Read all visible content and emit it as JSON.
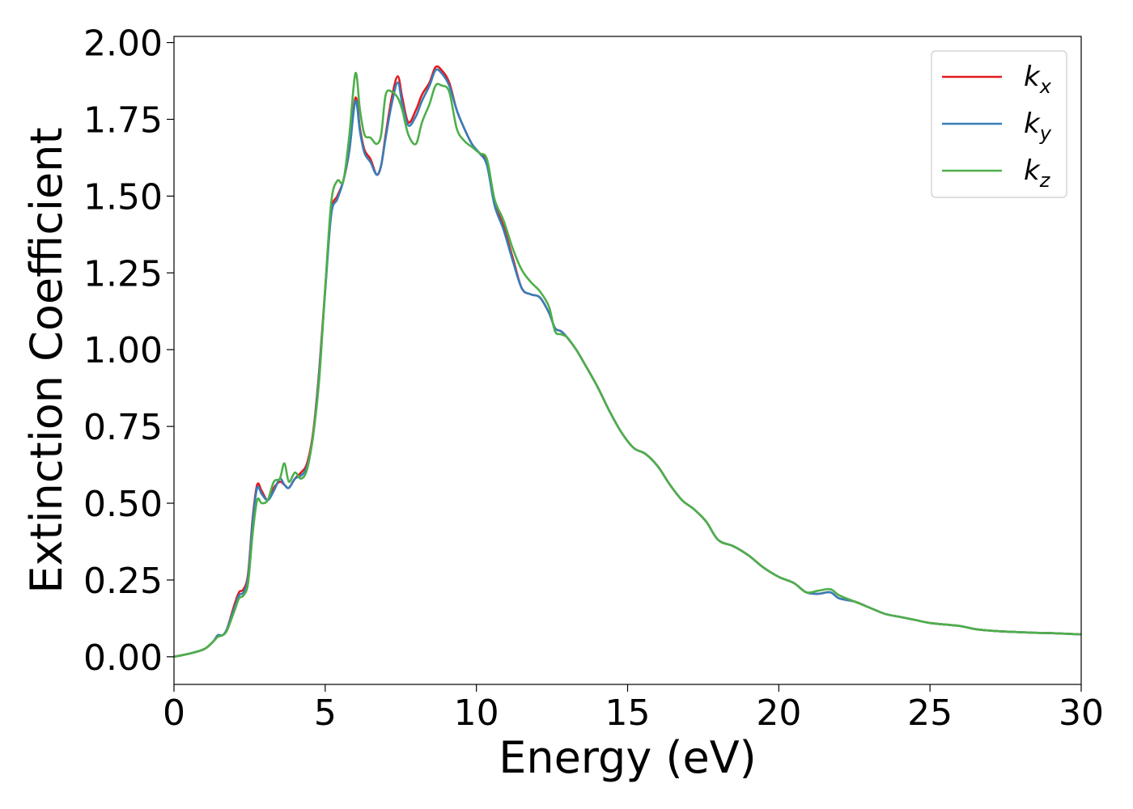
{
  "chart_data": {
    "type": "line",
    "xlabel": "Energy (eV)",
    "ylabel": "Extinction Coefficient",
    "xlim": [
      0,
      30
    ],
    "ylim": [
      -0.09,
      2.02
    ],
    "xticks": [
      0,
      5,
      10,
      15,
      20,
      25,
      30
    ],
    "yticks": [
      0.0,
      0.25,
      0.5,
      0.75,
      1.0,
      1.25,
      1.5,
      1.75,
      2.0
    ],
    "ytick_labels": [
      "0.00",
      "0.25",
      "0.50",
      "0.75",
      "1.00",
      "1.25",
      "1.50",
      "1.75",
      "2.00"
    ],
    "grid": false,
    "legend_position": "top-right",
    "series": [
      {
        "name": "k_x",
        "label_main": "k",
        "label_sub": "x",
        "color": "#e41a1c",
        "x": [
          0,
          0.5,
          1,
          1.3,
          1.45,
          1.6,
          1.75,
          2,
          2.15,
          2.3,
          2.45,
          2.6,
          2.75,
          2.9,
          3.1,
          3.3,
          3.5,
          3.65,
          3.8,
          4,
          4.2,
          4.4,
          4.6,
          4.8,
          5,
          5.2,
          5.4,
          5.6,
          5.8,
          6,
          6.15,
          6.3,
          6.5,
          6.7,
          6.85,
          7,
          7.2,
          7.4,
          7.55,
          7.75,
          8,
          8.2,
          8.45,
          8.65,
          8.85,
          9.1,
          9.35,
          9.6,
          9.85,
          10.1,
          10.35,
          10.6,
          10.9,
          11.2,
          11.5,
          11.8,
          12.1,
          12.4,
          12.6,
          12.8,
          13,
          13.3,
          13.6,
          14,
          14.4,
          14.8,
          15.2,
          15.6,
          16,
          16.4,
          16.8,
          17.2,
          17.6,
          18,
          18.5,
          19,
          19.5,
          20,
          20.5,
          20.9,
          21.3,
          21.7,
          22,
          22.5,
          23,
          23.5,
          24,
          24.5,
          25,
          25.5,
          26,
          26.5,
          27,
          27.5,
          28,
          28.5,
          29,
          29.5,
          30
        ],
        "values": [
          0,
          0.01,
          0.025,
          0.05,
          0.07,
          0.07,
          0.09,
          0.17,
          0.21,
          0.22,
          0.27,
          0.45,
          0.56,
          0.54,
          0.51,
          0.55,
          0.57,
          0.56,
          0.55,
          0.58,
          0.6,
          0.63,
          0.73,
          0.93,
          1.2,
          1.45,
          1.5,
          1.55,
          1.65,
          1.82,
          1.72,
          1.65,
          1.62,
          1.57,
          1.6,
          1.7,
          1.82,
          1.89,
          1.82,
          1.74,
          1.78,
          1.83,
          1.87,
          1.92,
          1.91,
          1.87,
          1.78,
          1.72,
          1.67,
          1.64,
          1.61,
          1.48,
          1.4,
          1.3,
          1.2,
          1.18,
          1.17,
          1.12,
          1.07,
          1.06,
          1.04,
          1.0,
          0.95,
          0.88,
          0.8,
          0.73,
          0.68,
          0.66,
          0.62,
          0.56,
          0.51,
          0.48,
          0.44,
          0.38,
          0.36,
          0.33,
          0.29,
          0.26,
          0.24,
          0.21,
          0.205,
          0.21,
          0.19,
          0.18,
          0.16,
          0.14,
          0.13,
          0.12,
          0.11,
          0.105,
          0.1,
          0.09,
          0.085,
          0.082,
          0.08,
          0.078,
          0.077,
          0.075,
          0.073
        ]
      },
      {
        "name": "k_y",
        "label_main": "k",
        "label_sub": "y",
        "color": "#377eb8",
        "x": [
          0,
          0.5,
          1,
          1.3,
          1.45,
          1.6,
          1.75,
          2,
          2.15,
          2.3,
          2.45,
          2.6,
          2.75,
          2.9,
          3.1,
          3.3,
          3.5,
          3.65,
          3.8,
          4,
          4.2,
          4.4,
          4.6,
          4.8,
          5,
          5.2,
          5.4,
          5.6,
          5.8,
          6,
          6.15,
          6.3,
          6.5,
          6.7,
          6.85,
          7,
          7.2,
          7.4,
          7.55,
          7.75,
          8,
          8.2,
          8.45,
          8.65,
          8.85,
          9.1,
          9.35,
          9.6,
          9.85,
          10.1,
          10.35,
          10.6,
          10.9,
          11.2,
          11.5,
          11.8,
          12.1,
          12.4,
          12.6,
          12.8,
          13,
          13.3,
          13.6,
          14,
          14.4,
          14.8,
          15.2,
          15.6,
          16,
          16.4,
          16.8,
          17.2,
          17.6,
          18,
          18.5,
          19,
          19.5,
          20,
          20.5,
          20.9,
          21.3,
          21.7,
          22,
          22.5,
          23,
          23.5,
          24,
          24.5,
          25,
          25.5,
          26,
          26.5,
          27,
          27.5,
          28,
          28.5,
          29,
          29.5,
          30
        ],
        "values": [
          0,
          0.01,
          0.025,
          0.05,
          0.07,
          0.07,
          0.09,
          0.16,
          0.2,
          0.21,
          0.26,
          0.44,
          0.55,
          0.53,
          0.51,
          0.54,
          0.58,
          0.56,
          0.55,
          0.58,
          0.59,
          0.62,
          0.72,
          0.92,
          1.19,
          1.44,
          1.49,
          1.55,
          1.65,
          1.81,
          1.71,
          1.64,
          1.61,
          1.57,
          1.6,
          1.69,
          1.8,
          1.87,
          1.8,
          1.73,
          1.76,
          1.81,
          1.86,
          1.91,
          1.9,
          1.86,
          1.78,
          1.72,
          1.67,
          1.64,
          1.6,
          1.47,
          1.39,
          1.29,
          1.2,
          1.18,
          1.17,
          1.12,
          1.07,
          1.06,
          1.04,
          1.0,
          0.95,
          0.88,
          0.8,
          0.73,
          0.68,
          0.66,
          0.62,
          0.56,
          0.51,
          0.48,
          0.44,
          0.38,
          0.36,
          0.33,
          0.29,
          0.26,
          0.24,
          0.21,
          0.205,
          0.21,
          0.19,
          0.18,
          0.16,
          0.14,
          0.13,
          0.12,
          0.11,
          0.105,
          0.1,
          0.09,
          0.085,
          0.082,
          0.08,
          0.078,
          0.077,
          0.075,
          0.073
        ]
      },
      {
        "name": "k_z",
        "label_main": "k",
        "label_sub": "z",
        "color": "#4daf4a",
        "x": [
          0,
          0.5,
          1,
          1.3,
          1.45,
          1.6,
          1.75,
          2,
          2.15,
          2.3,
          2.45,
          2.6,
          2.75,
          2.9,
          3.1,
          3.3,
          3.5,
          3.65,
          3.8,
          4,
          4.2,
          4.4,
          4.6,
          4.8,
          5,
          5.2,
          5.4,
          5.6,
          5.8,
          6,
          6.15,
          6.3,
          6.5,
          6.7,
          6.85,
          7,
          7.2,
          7.4,
          7.55,
          7.75,
          8,
          8.2,
          8.45,
          8.65,
          8.85,
          9.1,
          9.35,
          9.6,
          9.85,
          10.1,
          10.35,
          10.6,
          10.9,
          11.2,
          11.5,
          11.8,
          12.1,
          12.4,
          12.6,
          12.8,
          13,
          13.3,
          13.6,
          14,
          14.4,
          14.8,
          15.2,
          15.6,
          16,
          16.4,
          16.8,
          17.2,
          17.6,
          18,
          18.5,
          19,
          19.5,
          20,
          20.5,
          20.9,
          21.3,
          21.7,
          22,
          22.5,
          23,
          23.5,
          24,
          24.5,
          25,
          25.5,
          26,
          26.5,
          27,
          27.5,
          28,
          28.5,
          29,
          29.5,
          30
        ],
        "values": [
          0,
          0.01,
          0.025,
          0.05,
          0.065,
          0.07,
          0.085,
          0.15,
          0.19,
          0.2,
          0.24,
          0.4,
          0.51,
          0.5,
          0.51,
          0.57,
          0.58,
          0.63,
          0.57,
          0.6,
          0.58,
          0.61,
          0.72,
          0.9,
          1.2,
          1.48,
          1.55,
          1.55,
          1.7,
          1.9,
          1.78,
          1.7,
          1.69,
          1.67,
          1.7,
          1.83,
          1.84,
          1.82,
          1.78,
          1.7,
          1.67,
          1.74,
          1.8,
          1.86,
          1.86,
          1.84,
          1.72,
          1.68,
          1.66,
          1.64,
          1.62,
          1.49,
          1.42,
          1.33,
          1.26,
          1.22,
          1.19,
          1.14,
          1.06,
          1.05,
          1.04,
          1.0,
          0.95,
          0.88,
          0.8,
          0.73,
          0.68,
          0.66,
          0.62,
          0.56,
          0.51,
          0.48,
          0.44,
          0.38,
          0.36,
          0.33,
          0.29,
          0.26,
          0.24,
          0.21,
          0.215,
          0.22,
          0.2,
          0.18,
          0.16,
          0.14,
          0.13,
          0.12,
          0.11,
          0.105,
          0.1,
          0.09,
          0.085,
          0.082,
          0.08,
          0.078,
          0.077,
          0.075,
          0.073
        ]
      }
    ]
  }
}
